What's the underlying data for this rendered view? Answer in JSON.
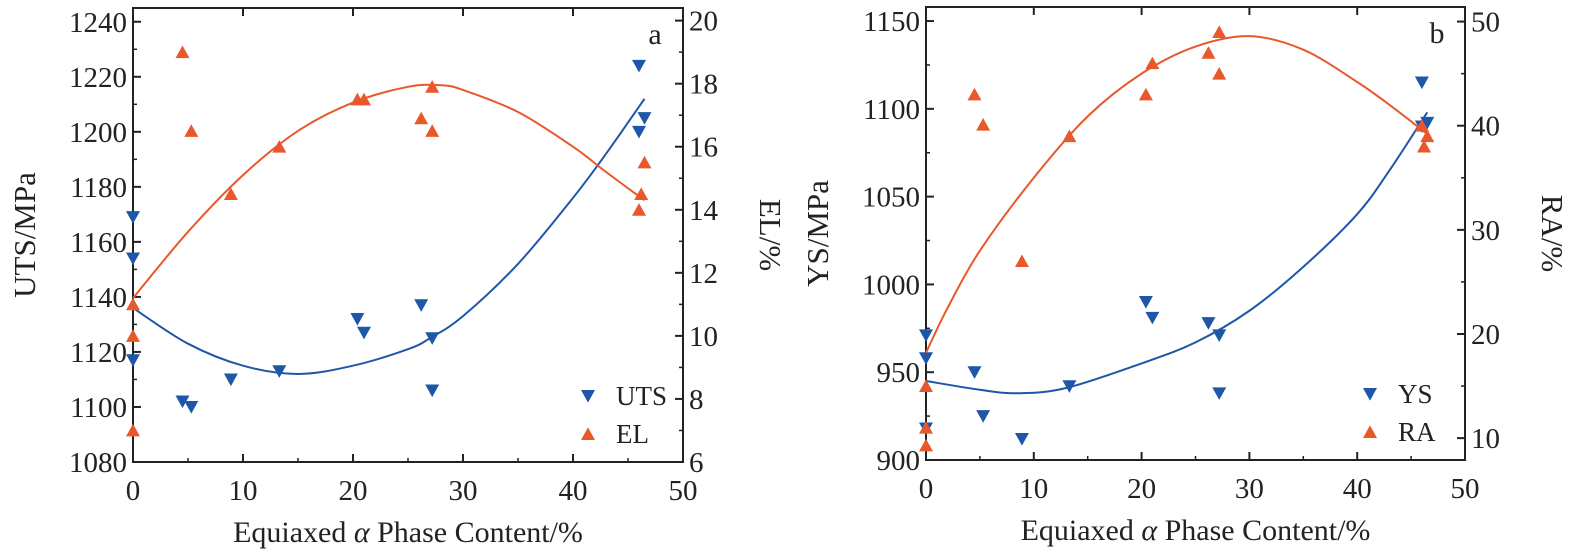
{
  "colors": {
    "blue": "#1f57a8",
    "orange": "#e9582b",
    "axis": "#222222"
  },
  "chart_data": [
    {
      "type": "scatter",
      "panel_label": "a",
      "xlabel": "Equiaxed α Phase Content/%",
      "ylabel": "UTS/MPa",
      "y2label": "EL/%",
      "xlim": [
        0,
        50
      ],
      "ylim": [
        1080,
        1245
      ],
      "y2lim": [
        6,
        20.4
      ],
      "xticks": [
        0,
        10,
        20,
        30,
        40,
        50
      ],
      "yticks": [
        1080,
        1100,
        1120,
        1140,
        1160,
        1180,
        1200,
        1220,
        1240
      ],
      "y2ticks": [
        6,
        8,
        10,
        12,
        14,
        16,
        18,
        20
      ],
      "legend_position": "bottom-right",
      "series": [
        {
          "name": "UTS",
          "axis": "left",
          "marker": "triangle-down",
          "color": "#1f57a8",
          "points": [
            [
              0,
              1169
            ],
            [
              0,
              1154
            ],
            [
              0,
              1117
            ],
            [
              4.5,
              1102
            ],
            [
              5.3,
              1100
            ],
            [
              8.9,
              1110
            ],
            [
              13.3,
              1113
            ],
            [
              20.4,
              1132
            ],
            [
              21,
              1127
            ],
            [
              26.2,
              1137
            ],
            [
              27.2,
              1125
            ],
            [
              27.2,
              1106
            ],
            [
              46,
              1224
            ],
            [
              46,
              1200
            ],
            [
              46.5,
              1205
            ]
          ],
          "fit": [
            [
              0,
              1136
            ],
            [
              5,
              1123
            ],
            [
              10,
              1115
            ],
            [
              15,
              1112
            ],
            [
              20,
              1115
            ],
            [
              25,
              1121
            ],
            [
              27,
              1125
            ],
            [
              30,
              1133
            ],
            [
              35,
              1152
            ],
            [
              40,
              1176
            ],
            [
              43,
              1192
            ],
            [
              46.5,
              1212
            ]
          ]
        },
        {
          "name": "EL",
          "axis": "right",
          "marker": "triangle-up",
          "color": "#e9582b",
          "points": [
            [
              0,
              11.0
            ],
            [
              0,
              10.0
            ],
            [
              0,
              7.0
            ],
            [
              4.5,
              19.0
            ],
            [
              5.3,
              16.5
            ],
            [
              8.9,
              14.5
            ],
            [
              13.3,
              16.0
            ],
            [
              20.4,
              17.5
            ],
            [
              21,
              17.5
            ],
            [
              26.2,
              16.9
            ],
            [
              27.2,
              17.9
            ],
            [
              27.2,
              16.5
            ],
            [
              46,
              14.0
            ],
            [
              46.2,
              14.5
            ],
            [
              46.5,
              15.5
            ]
          ],
          "fit": [
            [
              0,
              11.2
            ],
            [
              5,
              13.3
            ],
            [
              10,
              15.1
            ],
            [
              15,
              16.5
            ],
            [
              20,
              17.4
            ],
            [
              25,
              17.9
            ],
            [
              28,
              17.95
            ],
            [
              30,
              17.8
            ],
            [
              35,
              17.1
            ],
            [
              40,
              16.0
            ],
            [
              43,
              15.2
            ],
            [
              46.5,
              14.3
            ]
          ]
        }
      ]
    },
    {
      "type": "scatter",
      "panel_label": "b",
      "xlabel": "Equiaxed α Phase Content/%",
      "ylabel": "YS/MPa",
      "y2label": "RA/%",
      "xlim": [
        0,
        50
      ],
      "ylim": [
        900,
        1158
      ],
      "y2lim": [
        7.9,
        51.4
      ],
      "xticks": [
        0,
        10,
        20,
        30,
        40,
        50
      ],
      "yticks": [
        900,
        950,
        1000,
        1050,
        1100,
        1150
      ],
      "y2ticks": [
        10,
        20,
        30,
        40,
        50
      ],
      "legend_position": "bottom-right",
      "series": [
        {
          "name": "YS",
          "axis": "left",
          "marker": "triangle-down",
          "color": "#1f57a8",
          "points": [
            [
              0,
              971
            ],
            [
              0,
              958
            ],
            [
              0,
              918
            ],
            [
              4.5,
              950
            ],
            [
              5.3,
              925
            ],
            [
              8.9,
              912
            ],
            [
              13.3,
              942
            ],
            [
              20.4,
              990
            ],
            [
              21,
              981
            ],
            [
              26.2,
              978
            ],
            [
              27.2,
              971
            ],
            [
              27.2,
              938
            ],
            [
              46,
              1115
            ],
            [
              46,
              1090
            ],
            [
              46.5,
              1092
            ]
          ],
          "fit": [
            [
              0,
              945
            ],
            [
              5,
              940
            ],
            [
              8.5,
              938
            ],
            [
              13,
              941
            ],
            [
              20,
              955
            ],
            [
              25,
              967
            ],
            [
              30,
              985
            ],
            [
              35,
              1010
            ],
            [
              40,
              1040
            ],
            [
              43,
              1065
            ],
            [
              46.5,
              1098
            ]
          ]
        },
        {
          "name": "RA",
          "axis": "right",
          "marker": "triangle-up",
          "color": "#e9582b",
          "points": [
            [
              0,
              15
            ],
            [
              0,
              11
            ],
            [
              0,
              9.3
            ],
            [
              4.5,
              43
            ],
            [
              5.3,
              40.1
            ],
            [
              8.9,
              27
            ],
            [
              13.3,
              39
            ],
            [
              20.4,
              43
            ],
            [
              21,
              46
            ],
            [
              26.2,
              47
            ],
            [
              27.2,
              49
            ],
            [
              27.2,
              45
            ],
            [
              46,
              40
            ],
            [
              46.2,
              38
            ],
            [
              46.5,
              39
            ]
          ],
          "fit": [
            [
              0,
              18.2
            ],
            [
              2,
              22.5
            ],
            [
              5,
              28
            ],
            [
              10,
              35
            ],
            [
              15,
              40.9
            ],
            [
              20,
              45
            ],
            [
              25,
              47.6
            ],
            [
              30,
              48.6
            ],
            [
              35,
              47.3
            ],
            [
              40,
              44.2
            ],
            [
              43,
              42
            ],
            [
              46.5,
              39.2
            ]
          ]
        }
      ]
    }
  ]
}
